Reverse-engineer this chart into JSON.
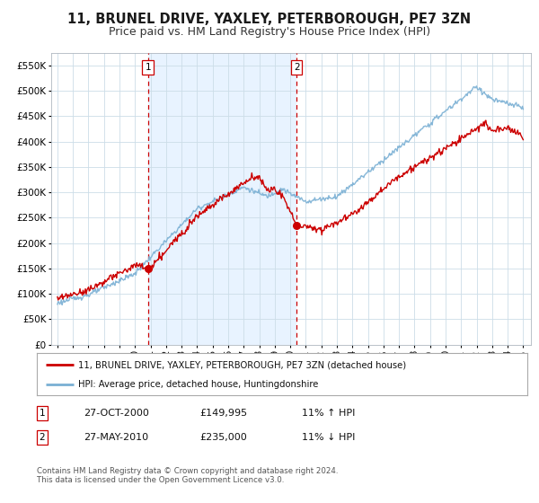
{
  "title": "11, BRUNEL DRIVE, YAXLEY, PETERBOROUGH, PE7 3ZN",
  "subtitle": "Price paid vs. HM Land Registry's House Price Index (HPI)",
  "legend_label_red": "11, BRUNEL DRIVE, YAXLEY, PETERBOROUGH, PE7 3ZN (detached house)",
  "legend_label_blue": "HPI: Average price, detached house, Huntingdonshire",
  "annotation1_label": "1",
  "annotation1_date": "27-OCT-2000",
  "annotation1_price": "£149,995",
  "annotation1_hpi": "11% ↑ HPI",
  "annotation2_label": "2",
  "annotation2_date": "27-MAY-2010",
  "annotation2_price": "£235,000",
  "annotation2_hpi": "11% ↓ HPI",
  "footer1": "Contains HM Land Registry data © Crown copyright and database right 2024.",
  "footer2": "This data is licensed under the Open Government Licence v3.0.",
  "ylim": [
    0,
    575000
  ],
  "yticks": [
    0,
    50000,
    100000,
    150000,
    200000,
    250000,
    300000,
    350000,
    400000,
    450000,
    500000,
    550000
  ],
  "ytick_labels": [
    "£0",
    "£50K",
    "£100K",
    "£150K",
    "£200K",
    "£250K",
    "£300K",
    "£350K",
    "£400K",
    "£450K",
    "£500K",
    "£550K"
  ],
  "xtick_years": [
    1995,
    1996,
    1997,
    1998,
    1999,
    2000,
    2001,
    2002,
    2003,
    2004,
    2005,
    2006,
    2007,
    2008,
    2009,
    2010,
    2011,
    2012,
    2013,
    2014,
    2015,
    2016,
    2017,
    2018,
    2019,
    2020,
    2021,
    2022,
    2023,
    2024,
    2025
  ],
  "vline1_x": 2000.83,
  "vline2_x": 2010.41,
  "marker1_x": 2000.83,
  "marker1_y": 149995,
  "marker2_x": 2010.41,
  "marker2_y": 235000,
  "red_color": "#cc0000",
  "blue_color": "#7ab0d4",
  "vline_color": "#cc0000",
  "bg_color": "#ffffff",
  "grid_color": "#ccdde8",
  "shade_color": "#ddeeff",
  "title_fontsize": 10.5,
  "subtitle_fontsize": 9
}
